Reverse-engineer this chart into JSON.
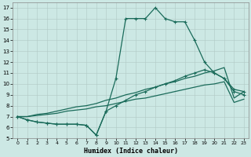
{
  "xlabel": "Humidex (Indice chaleur)",
  "bg_color": "#cce8e4",
  "grid_color": "#b0c8c4",
  "line_color": "#1a6b5a",
  "xlim": [
    -0.5,
    23.5
  ],
  "ylim": [
    5,
    17.5
  ],
  "xticks": [
    0,
    1,
    2,
    3,
    4,
    5,
    6,
    7,
    8,
    9,
    10,
    11,
    12,
    13,
    14,
    15,
    16,
    17,
    18,
    19,
    20,
    21,
    22,
    23
  ],
  "yticks": [
    5,
    6,
    7,
    8,
    9,
    10,
    11,
    12,
    13,
    14,
    15,
    16,
    17
  ],
  "line1_x": [
    0,
    1,
    2,
    3,
    4,
    5,
    6,
    7,
    8,
    9,
    10,
    11,
    12,
    13,
    14,
    15,
    16,
    17,
    18,
    19,
    20,
    21,
    22,
    23
  ],
  "line1_y": [
    7.0,
    6.7,
    6.5,
    6.4,
    6.3,
    6.3,
    6.3,
    6.2,
    5.3,
    7.5,
    10.5,
    16.0,
    16.0,
    16.0,
    17.0,
    16.0,
    15.7,
    15.7,
    14.0,
    12.0,
    11.0,
    10.5,
    9.3,
    9.0
  ],
  "line1_markers": [
    0,
    1,
    2,
    3,
    4,
    5,
    6,
    7,
    8,
    9,
    10,
    11,
    12,
    13,
    14,
    15,
    16,
    17,
    18,
    19,
    20,
    21,
    22,
    23
  ],
  "line2_x": [
    0,
    1,
    2,
    3,
    4,
    5,
    6,
    7,
    8,
    9,
    10,
    11,
    12,
    13,
    14,
    15,
    16,
    17,
    18,
    19,
    20,
    21,
    22,
    23
  ],
  "line2_y": [
    7.0,
    6.7,
    6.5,
    6.4,
    6.3,
    6.3,
    6.3,
    6.2,
    5.3,
    7.5,
    8.0,
    8.5,
    9.0,
    9.3,
    9.7,
    10.0,
    10.3,
    10.7,
    11.0,
    11.3,
    11.0,
    10.5,
    9.5,
    9.3
  ],
  "line3_x": [
    0,
    1,
    2,
    3,
    4,
    5,
    6,
    7,
    8,
    9,
    10,
    11,
    12,
    13,
    14,
    15,
    16,
    17,
    18,
    19,
    20,
    21,
    22,
    23
  ],
  "line3_y": [
    7.0,
    7.0,
    7.2,
    7.3,
    7.5,
    7.7,
    7.9,
    8.0,
    8.2,
    8.5,
    8.7,
    9.0,
    9.2,
    9.5,
    9.7,
    10.0,
    10.2,
    10.5,
    10.7,
    11.0,
    11.2,
    11.5,
    8.7,
    9.3
  ],
  "line4_x": [
    0,
    1,
    2,
    3,
    4,
    5,
    6,
    7,
    8,
    9,
    10,
    11,
    12,
    13,
    14,
    15,
    16,
    17,
    18,
    19,
    20,
    21,
    22,
    23
  ],
  "line4_y": [
    7.0,
    7.0,
    7.1,
    7.2,
    7.3,
    7.5,
    7.6,
    7.7,
    7.9,
    8.0,
    8.2,
    8.4,
    8.6,
    8.7,
    8.9,
    9.1,
    9.3,
    9.5,
    9.7,
    9.9,
    10.0,
    10.2,
    8.3,
    8.6
  ]
}
